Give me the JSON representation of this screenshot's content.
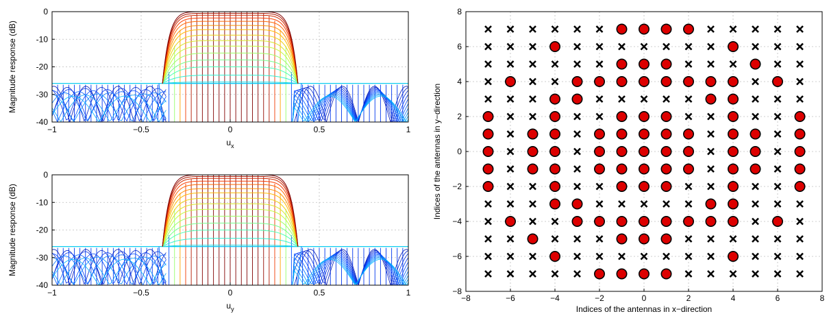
{
  "chart_data": [
    {
      "type": "line",
      "panel": "top-left",
      "xlabel": "u",
      "xlabel_sub": "x",
      "ylabel": "Magnitude response (dB)",
      "xlim": [
        -1,
        1
      ],
      "ylim": [
        -40,
        0
      ],
      "xticks": [
        -1,
        -0.5,
        0,
        0.5,
        1
      ],
      "xtick_labels": [
        "−1",
        "−0.5",
        "0",
        "0.5",
        "1"
      ],
      "yticks": [
        0,
        -10,
        -20,
        -30,
        -40
      ],
      "ytick_labels": [
        "0",
        "-10",
        "-20",
        "-30",
        "-40"
      ],
      "grid": true,
      "mainlobe": {
        "u_left": -0.38,
        "u_right": 0.38,
        "floor_db": -26,
        "min_db": -40
      },
      "series_count": 16,
      "series_peaks_db": [
        -26.0,
        -25.5,
        -23.0,
        -20.0,
        -17.5,
        -15.0,
        -12.5,
        -10.5,
        -8.5,
        -6.5,
        -5.0,
        -3.5,
        -2.3,
        -1.3,
        -0.6,
        0.0
      ],
      "colormap": "jet",
      "colormap_colors": [
        "#00008f",
        "#0040ff",
        "#00bfff",
        "#40ffbf",
        "#bfff40",
        "#ffbf00",
        "#ff4000",
        "#800000"
      ]
    },
    {
      "type": "line",
      "panel": "bottom-left",
      "xlabel": "u",
      "xlabel_sub": "y",
      "ylabel": "Magnitude response (dB)",
      "xlim": [
        -1,
        1
      ],
      "ylim": [
        -40,
        0
      ],
      "xticks": [
        -1,
        -0.5,
        0,
        0.5,
        1
      ],
      "xtick_labels": [
        "−1",
        "−0.5",
        "0",
        "0.5",
        "1"
      ],
      "yticks": [
        0,
        -10,
        -20,
        -30,
        -40
      ],
      "ytick_labels": [
        "0",
        "-10",
        "-20",
        "-30",
        "-40"
      ],
      "grid": true,
      "mainlobe": {
        "u_left": -0.38,
        "u_right": 0.38,
        "floor_db": -26,
        "min_db": -40
      },
      "series_count": 16,
      "series_peaks_db": [
        -26.0,
        -25.5,
        -23.0,
        -20.0,
        -17.5,
        -15.0,
        -12.5,
        -10.5,
        -8.5,
        -6.5,
        -5.0,
        -3.5,
        -2.3,
        -1.3,
        -0.6,
        0.0
      ],
      "colormap": "jet",
      "colormap_colors": [
        "#00008f",
        "#0040ff",
        "#00bfff",
        "#40ffbf",
        "#bfff40",
        "#ffbf00",
        "#ff4000",
        "#800000"
      ]
    },
    {
      "type": "scatter",
      "panel": "right",
      "xlabel": "Indices of the antennas in x−direction",
      "ylabel": "Indices of the antennas in y−direction",
      "xlim": [
        -8,
        8
      ],
      "ylim": [
        -8,
        8
      ],
      "xticks": [
        -8,
        -6,
        -4,
        -2,
        0,
        2,
        4,
        6,
        8
      ],
      "yticks": [
        -8,
        -6,
        -4,
        -2,
        0,
        2,
        4,
        6,
        8
      ],
      "xtick_labels": [
        "−8",
        "−6",
        "−4",
        "−2",
        "0",
        "2",
        "4",
        "6",
        "8"
      ],
      "ytick_labels": [
        "−8",
        "−6",
        "−4",
        "−2",
        "0",
        "2",
        "4",
        "6",
        "8"
      ],
      "grid": true,
      "grid_range": [
        -7,
        7
      ],
      "marker_inactive": "x",
      "marker_active": "circle",
      "active_fill": "#dd0000",
      "active_points": [
        [
          -1,
          7
        ],
        [
          0,
          7
        ],
        [
          1,
          7
        ],
        [
          2,
          7
        ],
        [
          -4,
          6
        ],
        [
          4,
          6
        ],
        [
          -1,
          5
        ],
        [
          0,
          5
        ],
        [
          1,
          5
        ],
        [
          5,
          5
        ],
        [
          -6,
          4
        ],
        [
          -3,
          4
        ],
        [
          -2,
          4
        ],
        [
          -1,
          4
        ],
        [
          0,
          4
        ],
        [
          1,
          4
        ],
        [
          2,
          4
        ],
        [
          3,
          4
        ],
        [
          4,
          4
        ],
        [
          6,
          4
        ],
        [
          -4,
          3
        ],
        [
          -3,
          3
        ],
        [
          3,
          3
        ],
        [
          4,
          3
        ],
        [
          -7,
          2
        ],
        [
          -4,
          2
        ],
        [
          -1,
          2
        ],
        [
          0,
          2
        ],
        [
          1,
          2
        ],
        [
          4,
          2
        ],
        [
          7,
          2
        ],
        [
          -7,
          1
        ],
        [
          -5,
          1
        ],
        [
          -4,
          1
        ],
        [
          -2,
          1
        ],
        [
          -1,
          1
        ],
        [
          0,
          1
        ],
        [
          1,
          1
        ],
        [
          2,
          1
        ],
        [
          4,
          1
        ],
        [
          5,
          1
        ],
        [
          7,
          1
        ],
        [
          -7,
          0
        ],
        [
          -5,
          0
        ],
        [
          -4,
          0
        ],
        [
          -2,
          0
        ],
        [
          -1,
          0
        ],
        [
          0,
          0
        ],
        [
          1,
          0
        ],
        [
          2,
          0
        ],
        [
          4,
          0
        ],
        [
          5,
          0
        ],
        [
          7,
          0
        ],
        [
          -7,
          -1
        ],
        [
          -5,
          -1
        ],
        [
          -4,
          -1
        ],
        [
          -2,
          -1
        ],
        [
          -1,
          -1
        ],
        [
          0,
          -1
        ],
        [
          1,
          -1
        ],
        [
          2,
          -1
        ],
        [
          4,
          -1
        ],
        [
          5,
          -1
        ],
        [
          7,
          -1
        ],
        [
          -7,
          -2
        ],
        [
          -4,
          -2
        ],
        [
          -1,
          -2
        ],
        [
          0,
          -2
        ],
        [
          1,
          -2
        ],
        [
          4,
          -2
        ],
        [
          7,
          -2
        ],
        [
          -4,
          -3
        ],
        [
          -3,
          -3
        ],
        [
          3,
          -3
        ],
        [
          4,
          -3
        ],
        [
          -6,
          -4
        ],
        [
          -3,
          -4
        ],
        [
          -2,
          -4
        ],
        [
          -1,
          -4
        ],
        [
          0,
          -4
        ],
        [
          1,
          -4
        ],
        [
          2,
          -4
        ],
        [
          3,
          -4
        ],
        [
          4,
          -4
        ],
        [
          6,
          -4
        ],
        [
          -1,
          -5
        ],
        [
          0,
          -5
        ],
        [
          1,
          -5
        ],
        [
          -5,
          -5
        ],
        [
          -4,
          -6
        ],
        [
          4,
          -6
        ],
        [
          -2,
          -7
        ],
        [
          -1,
          -7
        ],
        [
          0,
          -7
        ],
        [
          1,
          -7
        ]
      ]
    }
  ]
}
